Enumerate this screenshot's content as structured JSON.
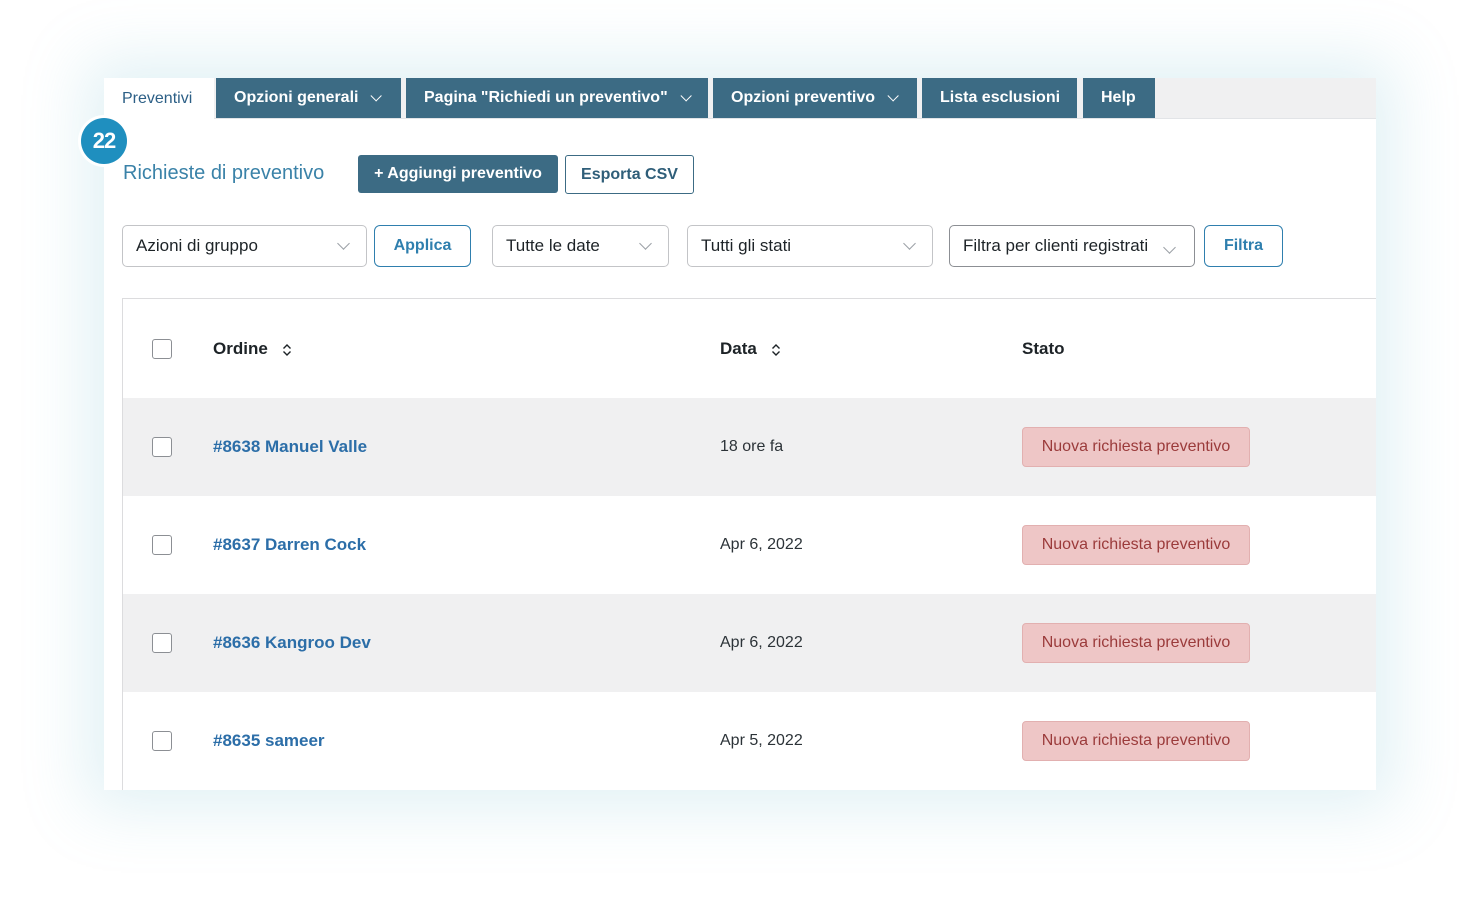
{
  "tabs": [
    {
      "label": "Preventivi",
      "active": true,
      "dropdown": false
    },
    {
      "label": "Opzioni generali",
      "active": false,
      "dropdown": true
    },
    {
      "label": "Pagina \"Richiedi un preventivo\"",
      "active": false,
      "dropdown": true
    },
    {
      "label": "Opzioni preventivo",
      "active": false,
      "dropdown": true
    },
    {
      "label": "Lista esclusioni",
      "active": false,
      "dropdown": false
    },
    {
      "label": "Help",
      "active": false,
      "dropdown": false
    }
  ],
  "step_badge": "22",
  "page_title": "Richieste di preventivo",
  "actions": {
    "add_quote": "+ Aggiungi preventivo",
    "export_csv": "Esporta CSV"
  },
  "filters": {
    "bulk_actions": "Azioni di gruppo",
    "apply": "Applica",
    "all_dates": "Tutte le date",
    "all_statuses": "Tutti gli stati",
    "registered_customers": "Filtra per clienti registrati",
    "filter": "Filtra"
  },
  "table": {
    "columns": [
      "Ordine",
      "Data",
      "Stato"
    ],
    "rows": [
      {
        "order": "#8638 Manuel Valle",
        "date": "18 ore fa",
        "status": "Nuova richiesta preventivo"
      },
      {
        "order": "#8637 Darren Cock",
        "date": "Apr 6, 2022",
        "status": "Nuova richiesta preventivo"
      },
      {
        "order": "#8636 Kangroo Dev",
        "date": "Apr 6, 2022",
        "status": "Nuova richiesta preventivo"
      },
      {
        "order": "#8635 sameer",
        "date": "Apr 5, 2022",
        "status": "Nuova richiesta preventivo"
      }
    ]
  },
  "colors": {
    "tab_bg": "#3c6b84",
    "link": "#2c6ea8",
    "status_bg": "#eec6c6",
    "status_text": "#9b3b3b",
    "badge": "#1f8fbf"
  }
}
